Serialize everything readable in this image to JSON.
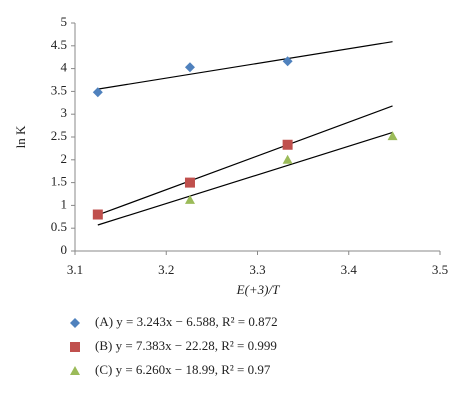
{
  "chart_data": {
    "type": "scatter",
    "x_label": "E(+3)/T",
    "y_label": "ln K",
    "xlim": [
      3.1,
      3.5
    ],
    "xticks": [
      3.1,
      3.2,
      3.3,
      3.4,
      3.5
    ],
    "ylim": [
      0,
      5
    ],
    "yticks": [
      0,
      0.5,
      1,
      1.5,
      2,
      2.5,
      3,
      3.5,
      4,
      4.5,
      5
    ],
    "grid": false,
    "series": [
      {
        "name": "(A) y = 3.243x − 6.588, R² = 0.872",
        "color": "#4f81bd",
        "marker": "diamond",
        "x": [
          3.125,
          3.226,
          3.333
        ],
        "values": [
          3.48,
          4.03,
          4.16
        ],
        "trend": {
          "x": [
            3.125,
            3.448
          ],
          "values": [
            3.55,
            4.59
          ]
        }
      },
      {
        "name": "(B) y = 7.383x − 22.28, R² = 0.999",
        "color": "#c0504d",
        "marker": "square",
        "x": [
          3.125,
          3.226,
          3.333
        ],
        "values": [
          0.8,
          1.5,
          2.33
        ],
        "trend": {
          "x": [
            3.125,
            3.448
          ],
          "values": [
            0.79,
            3.18
          ]
        }
      },
      {
        "name": "(C) y = 6.260x − 18.99, R² = 0.97",
        "color": "#9bbb59",
        "marker": "triangle",
        "x": [
          3.226,
          3.333,
          3.448
        ],
        "values": [
          1.12,
          2.0,
          2.52
        ],
        "trend": {
          "x": [
            3.125,
            3.448
          ],
          "values": [
            0.57,
            2.6
          ]
        }
      }
    ]
  }
}
